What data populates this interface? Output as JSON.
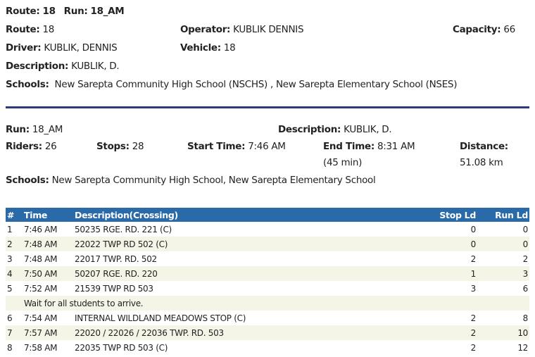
{
  "header": {
    "title_route_label": "Route:",
    "title_route": "18",
    "title_run_label": "Run:",
    "title_run": "18_AM"
  },
  "route": {
    "route_label": "Route:",
    "route": "18",
    "operator_label": "Operator:",
    "operator": "KUBLIK DENNIS",
    "capacity_label": "Capacity:",
    "capacity": "66",
    "driver_label": "Driver:",
    "driver": "KUBLIK, DENNIS",
    "vehicle_label": "Vehicle:",
    "vehicle": "18",
    "description_label": "Description:",
    "description": "KUBLIK, D.",
    "schools_label": "Schools:",
    "schools": "New Sarepta Community High School (NSCHS) , New Sarepta Elementary School (NSES)"
  },
  "run": {
    "run_label": "Run:",
    "run": "18_AM",
    "description_label": "Description:",
    "description": "KUBLIK, D.",
    "riders_label": "Riders:",
    "riders": "26",
    "stops_label": "Stops:",
    "stops": "28",
    "start_label": "Start Time:",
    "start": "7:46 AM",
    "end_label": "End Time:",
    "end": "8:31 AM",
    "duration": "(45 min)",
    "distance_label": "Distance:",
    "distance": "51.08 km",
    "schools_label": "Schools:",
    "schools": "New Sarepta Community High School, New Sarepta Elementary School"
  },
  "table": {
    "headers": [
      "#",
      "Time",
      "Description(Crossing)",
      "Stop Ld",
      "Run Ld"
    ],
    "rows": [
      {
        "n": "1",
        "time": "7:46 AM",
        "desc": "50235 RGE. RD. 221 (C)",
        "stop": "0",
        "run": "0"
      },
      {
        "n": "2",
        "time": "7:48 AM",
        "desc": "22022 TWP RD 502 (C)",
        "stop": "0",
        "run": "0"
      },
      {
        "n": "3",
        "time": "7:48 AM",
        "desc": "22017 TWP. RD. 502",
        "stop": "2",
        "run": "2"
      },
      {
        "n": "4",
        "time": "7:50 AM",
        "desc": "50207 RGE. RD. 220",
        "stop": "1",
        "run": "3"
      },
      {
        "n": "5",
        "time": "7:52 AM",
        "desc": "21539 TWP RD 503",
        "stop": "3",
        "run": "6"
      },
      {
        "note": "Wait for all students to arrive."
      },
      {
        "n": "6",
        "time": "7:54 AM",
        "desc": "INTERNAL WILDLAND MEADOWS STOP (C)",
        "stop": "2",
        "run": "8"
      },
      {
        "n": "7",
        "time": "7:57 AM",
        "desc": "22020 / 22026 / 22036 TWP. RD. 503",
        "stop": "2",
        "run": "10"
      },
      {
        "n": "8",
        "time": "7:58 AM",
        "desc": "22035 TWP RD 503 (C)",
        "stop": "2",
        "run": "12"
      }
    ]
  }
}
